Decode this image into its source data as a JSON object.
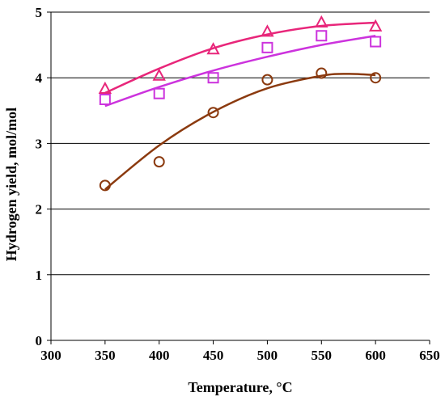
{
  "chart_data": {
    "type": "scatter",
    "xlabel": "Temperature, °C",
    "ylabel": "Hydrogen yield, mol/mol",
    "xlim": [
      300,
      650
    ],
    "ylim": [
      0,
      5
    ],
    "xticks": [
      300,
      350,
      400,
      450,
      500,
      550,
      600,
      650
    ],
    "yticks": [
      0,
      1,
      2,
      3,
      4,
      5
    ],
    "xtick_labels": [
      "300",
      "350",
      "400",
      "450",
      "500",
      "550",
      "600",
      "650"
    ],
    "ytick_labels": [
      "0",
      "1",
      "2",
      "3",
      "4",
      "5"
    ],
    "grid": "horizontal",
    "legend": "none",
    "series": [
      {
        "marker": "triangle",
        "color": "#e8267a",
        "x": [
          350,
          400,
          450,
          500,
          550,
          600
        ],
        "y": [
          3.83,
          4.03,
          4.43,
          4.7,
          4.84,
          4.78
        ],
        "trend": {
          "x": [
            350,
            400,
            450,
            500,
            550,
            600
          ],
          "y": [
            3.77,
            4.14,
            4.45,
            4.66,
            4.79,
            4.84
          ]
        }
      },
      {
        "marker": "square",
        "color": "#cc33dd",
        "x": [
          350,
          400,
          450,
          500,
          550,
          600
        ],
        "y": [
          3.67,
          3.76,
          4.0,
          4.46,
          4.64,
          4.55
        ],
        "trend": {
          "x": [
            350,
            400,
            450,
            500,
            550,
            600
          ],
          "y": [
            3.57,
            3.86,
            4.11,
            4.32,
            4.5,
            4.64
          ]
        }
      },
      {
        "marker": "circle",
        "color": "#8b3a0f",
        "x": [
          350,
          400,
          450,
          500,
          550,
          600
        ],
        "y": [
          2.36,
          2.72,
          3.47,
          3.97,
          4.07,
          4.0
        ],
        "trend": {
          "x": [
            350,
            400,
            450,
            500,
            550,
            575,
            600
          ],
          "y": [
            2.3,
            2.97,
            3.48,
            3.84,
            4.03,
            4.06,
            4.04
          ]
        }
      }
    ]
  }
}
